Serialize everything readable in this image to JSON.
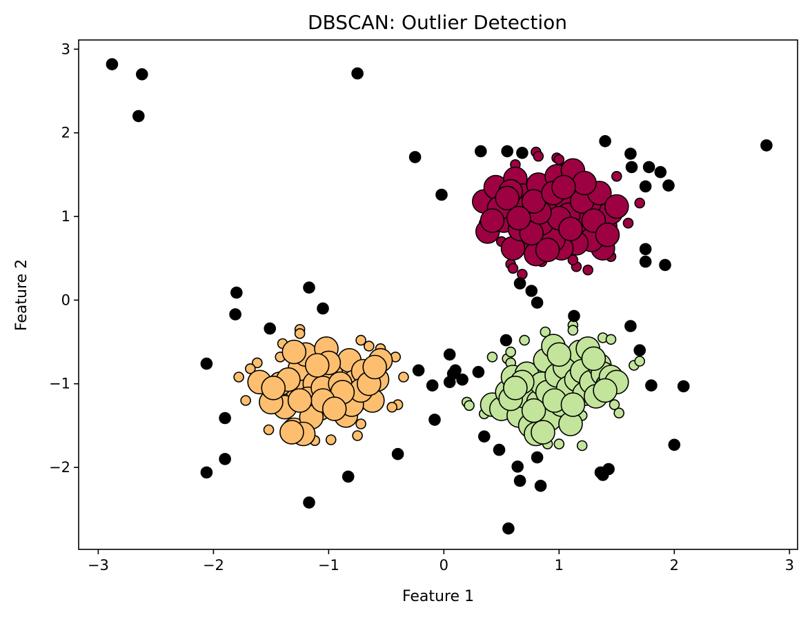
{
  "chart_data": {
    "type": "scatter",
    "title": "DBSCAN: Outlier Detection",
    "xlabel": "Feature 1",
    "ylabel": "Feature 2",
    "xlim": [
      -3.17,
      3.07
    ],
    "ylim": [
      -2.98,
      3.11
    ],
    "xticks": [
      -3,
      -2,
      -1,
      0,
      1,
      2,
      3
    ],
    "yticks": [
      -2,
      -1,
      0,
      1,
      2,
      3
    ],
    "xtick_labels": [
      "−3",
      "−2",
      "−1",
      "0",
      "1",
      "2",
      "3"
    ],
    "ytick_labels": [
      "−2",
      "−1",
      "0",
      "1",
      "2",
      "3"
    ],
    "grid": false,
    "colors": {
      "outlier": "#000000",
      "cluster_a": "#9e0142",
      "cluster_b": "#fdbf6f",
      "cluster_c": "#c2e59b",
      "edge": "#000000"
    },
    "series": [
      {
        "color": "#9e0142",
        "core": [
          [
            0.35,
            1.18
          ],
          [
            0.45,
            1.35
          ],
          [
            0.55,
            1.08
          ],
          [
            0.62,
            1.45
          ],
          [
            0.38,
            0.82
          ],
          [
            0.52,
            0.95
          ],
          [
            0.68,
            1.25
          ],
          [
            0.75,
            1.02
          ],
          [
            0.82,
            1.38
          ],
          [
            0.88,
            1.12
          ],
          [
            0.72,
            0.72
          ],
          [
            0.6,
            0.62
          ],
          [
            0.8,
            0.55
          ],
          [
            0.92,
            0.85
          ],
          [
            0.98,
            1.48
          ],
          [
            1.05,
            1.22
          ],
          [
            1.12,
            1.55
          ],
          [
            1.18,
            0.95
          ],
          [
            1.25,
            1.32
          ],
          [
            1.32,
            1.1
          ],
          [
            1.4,
            0.88
          ],
          [
            1.45,
            1.05
          ],
          [
            1.38,
            0.62
          ],
          [
            1.28,
            0.72
          ],
          [
            1.15,
            0.68
          ],
          [
            1.02,
            0.62
          ],
          [
            0.95,
            0.72
          ],
          [
            0.85,
            0.92
          ],
          [
            0.7,
            1.1
          ],
          [
            0.58,
            1.3
          ],
          [
            0.48,
            1.1
          ],
          [
            0.42,
            0.95
          ],
          [
            1.08,
            1.02
          ],
          [
            1.2,
            1.18
          ],
          [
            1.35,
            1.28
          ],
          [
            1.3,
            0.95
          ],
          [
            0.9,
            0.6
          ],
          [
            0.66,
            0.85
          ],
          [
            0.76,
            0.8
          ],
          [
            1.0,
            0.98
          ],
          [
            1.1,
            0.85
          ],
          [
            0.55,
            1.22
          ],
          [
            0.83,
            1.05
          ],
          [
            1.22,
            1.4
          ],
          [
            0.78,
            1.18
          ],
          [
            0.95,
            1.28
          ],
          [
            1.5,
            1.12
          ],
          [
            1.42,
            0.78
          ],
          [
            0.65,
            0.98
          ],
          [
            1.04,
            1.35
          ]
        ],
        "border": [
          [
            0.62,
            1.62
          ],
          [
            0.8,
            1.77
          ],
          [
            0.98,
            1.7
          ],
          [
            1.05,
            1.58
          ],
          [
            0.35,
            0.92
          ],
          [
            0.58,
            0.43
          ],
          [
            0.6,
            0.38
          ],
          [
            0.68,
            0.31
          ],
          [
            0.85,
            0.46
          ],
          [
            1.15,
            0.4
          ],
          [
            1.25,
            0.36
          ],
          [
            1.45,
            0.52
          ],
          [
            1.6,
            0.92
          ],
          [
            1.7,
            1.16
          ],
          [
            1.5,
            1.48
          ],
          [
            0.82,
            1.72
          ],
          [
            1.0,
            1.68
          ],
          [
            0.5,
            0.7
          ],
          [
            1.12,
            0.48
          ],
          [
            1.4,
            0.58
          ]
        ]
      },
      {
        "color": "#fdbf6f",
        "core": [
          [
            -1.6,
            -0.98
          ],
          [
            -1.45,
            -1.15
          ],
          [
            -1.38,
            -1.28
          ],
          [
            -1.3,
            -1.55
          ],
          [
            -1.28,
            -1.05
          ],
          [
            -1.25,
            -0.82
          ],
          [
            -1.2,
            -0.65
          ],
          [
            -1.12,
            -1.0
          ],
          [
            -1.08,
            -1.3
          ],
          [
            -1.02,
            -0.58
          ],
          [
            -0.98,
            -0.88
          ],
          [
            -0.95,
            -1.12
          ],
          [
            -0.92,
            -1.22
          ],
          [
            -0.85,
            -1.38
          ],
          [
            -0.82,
            -0.72
          ],
          [
            -0.78,
            -0.98
          ],
          [
            -0.75,
            -1.18
          ],
          [
            -0.7,
            -0.85
          ],
          [
            -0.68,
            -1.1
          ],
          [
            -0.62,
            -1.2
          ],
          [
            -0.58,
            -0.95
          ],
          [
            -0.55,
            -0.72
          ],
          [
            -1.5,
            -1.22
          ],
          [
            -1.42,
            -1.0
          ],
          [
            -1.35,
            -0.95
          ],
          [
            -1.18,
            -1.18
          ],
          [
            -1.15,
            -1.4
          ],
          [
            -1.05,
            -1.05
          ],
          [
            -0.9,
            -1.0
          ],
          [
            -0.8,
            -1.25
          ],
          [
            -1.3,
            -0.62
          ],
          [
            -1.22,
            -1.6
          ],
          [
            -0.72,
            -1.08
          ],
          [
            -1.0,
            -0.75
          ],
          [
            -1.1,
            -0.78
          ],
          [
            -0.88,
            -1.1
          ],
          [
            -0.65,
            -1.0
          ],
          [
            -1.48,
            -1.05
          ],
          [
            -1.32,
            -1.58
          ],
          [
            -1.05,
            -1.2
          ],
          [
            -0.6,
            -0.8
          ],
          [
            -1.25,
            -1.2
          ],
          [
            -0.95,
            -1.3
          ]
        ],
        "border": [
          [
            -1.62,
            -0.75
          ],
          [
            -1.68,
            -0.82
          ],
          [
            -1.78,
            -0.92
          ],
          [
            -1.72,
            -1.2
          ],
          [
            -1.55,
            -1.2
          ],
          [
            -1.52,
            -1.55
          ],
          [
            -1.42,
            -0.68
          ],
          [
            -1.4,
            -0.52
          ],
          [
            -1.25,
            -0.35
          ],
          [
            -1.25,
            -0.4
          ],
          [
            -1.35,
            -1.58
          ],
          [
            -1.3,
            -1.62
          ],
          [
            -1.12,
            -1.68
          ],
          [
            -0.98,
            -1.67
          ],
          [
            -0.75,
            -1.62
          ],
          [
            -0.72,
            -1.48
          ],
          [
            -0.65,
            -0.55
          ],
          [
            -0.72,
            -0.48
          ],
          [
            -0.55,
            -0.58
          ],
          [
            -0.42,
            -0.68
          ],
          [
            -0.4,
            -1.25
          ],
          [
            -0.45,
            -1.28
          ],
          [
            -0.35,
            -0.92
          ]
        ]
      },
      {
        "color": "#c2e59b",
        "core": [
          [
            0.42,
            -1.25
          ],
          [
            0.5,
            -1.3
          ],
          [
            0.55,
            -1.1
          ],
          [
            0.6,
            -0.92
          ],
          [
            0.62,
            -1.05
          ],
          [
            0.65,
            -1.38
          ],
          [
            0.7,
            -1.15
          ],
          [
            0.72,
            -0.88
          ],
          [
            0.75,
            -1.5
          ],
          [
            0.8,
            -1.6
          ],
          [
            0.82,
            -1.22
          ],
          [
            0.85,
            -1.0
          ],
          [
            0.88,
            -0.72
          ],
          [
            0.9,
            -1.1
          ],
          [
            0.92,
            -1.42
          ],
          [
            0.95,
            -0.55
          ],
          [
            0.98,
            -0.9
          ],
          [
            1.02,
            -1.25
          ],
          [
            1.05,
            -0.8
          ],
          [
            1.08,
            -1.05
          ],
          [
            1.1,
            -1.48
          ],
          [
            1.15,
            -0.95
          ],
          [
            1.18,
            -0.62
          ],
          [
            1.2,
            -0.85
          ],
          [
            1.22,
            -1.12
          ],
          [
            1.25,
            -0.58
          ],
          [
            1.28,
            -0.98
          ],
          [
            1.32,
            -1.15
          ],
          [
            1.35,
            -0.78
          ],
          [
            1.38,
            -0.88
          ],
          [
            1.42,
            -1.02
          ],
          [
            1.45,
            -0.92
          ],
          [
            1.5,
            -0.98
          ],
          [
            0.58,
            -1.18
          ],
          [
            0.68,
            -0.98
          ],
          [
            0.78,
            -1.32
          ],
          [
            0.96,
            -1.2
          ],
          [
            1.0,
            -0.65
          ],
          [
            1.12,
            -1.25
          ],
          [
            1.3,
            -0.7
          ],
          [
            0.62,
            -1.05
          ],
          [
            0.86,
            -1.58
          ],
          [
            1.4,
            -1.08
          ]
        ],
        "border": [
          [
            0.42,
            -0.68
          ],
          [
            0.55,
            -0.7
          ],
          [
            0.58,
            -0.75
          ],
          [
            0.58,
            -0.62
          ],
          [
            0.7,
            -0.48
          ],
          [
            0.88,
            -0.38
          ],
          [
            1.12,
            -0.3
          ],
          [
            1.12,
            -0.36
          ],
          [
            1.38,
            -0.45
          ],
          [
            1.45,
            -0.47
          ],
          [
            1.65,
            -0.78
          ],
          [
            1.7,
            -0.73
          ],
          [
            1.48,
            -1.25
          ],
          [
            1.52,
            -1.35
          ],
          [
            1.2,
            -1.38
          ],
          [
            0.9,
            -1.72
          ],
          [
            1.0,
            -1.72
          ],
          [
            1.2,
            -1.74
          ],
          [
            0.35,
            -1.36
          ],
          [
            0.2,
            -1.22
          ],
          [
            0.22,
            -1.26
          ]
        ]
      },
      {
        "color": "#000000",
        "outliers": [
          [
            -2.88,
            2.82
          ],
          [
            -2.62,
            2.7
          ],
          [
            -2.65,
            2.2
          ],
          [
            -0.75,
            2.71
          ],
          [
            -0.25,
            1.71
          ],
          [
            -0.02,
            1.26
          ],
          [
            0.32,
            1.78
          ],
          [
            0.55,
            1.78
          ],
          [
            0.68,
            1.76
          ],
          [
            1.4,
            1.9
          ],
          [
            1.62,
            1.75
          ],
          [
            1.63,
            1.59
          ],
          [
            1.78,
            1.59
          ],
          [
            1.88,
            1.53
          ],
          [
            1.75,
            1.36
          ],
          [
            1.95,
            1.37
          ],
          [
            2.8,
            1.85
          ],
          [
            1.75,
            0.61
          ],
          [
            1.75,
            0.46
          ],
          [
            1.92,
            0.42
          ],
          [
            0.66,
            0.2
          ],
          [
            0.76,
            0.11
          ],
          [
            0.81,
            -0.03
          ],
          [
            -1.8,
            0.09
          ],
          [
            -1.17,
            0.15
          ],
          [
            -1.05,
            -0.1
          ],
          [
            -1.81,
            -0.17
          ],
          [
            -1.51,
            -0.34
          ],
          [
            -2.06,
            -0.76
          ],
          [
            -0.22,
            -0.84
          ],
          [
            -0.1,
            -1.02
          ],
          [
            0.05,
            -0.98
          ],
          [
            0.08,
            -0.88
          ],
          [
            0.1,
            -0.84
          ],
          [
            0.16,
            -0.95
          ],
          [
            0.05,
            -0.65
          ],
          [
            0.3,
            -0.86
          ],
          [
            0.54,
            -0.48
          ],
          [
            1.13,
            -0.19
          ],
          [
            1.62,
            -0.31
          ],
          [
            1.7,
            -0.6
          ],
          [
            1.8,
            -1.02
          ],
          [
            2.08,
            -1.03
          ],
          [
            -0.08,
            -1.43
          ],
          [
            -1.9,
            -1.41
          ],
          [
            -0.4,
            -1.84
          ],
          [
            -1.9,
            -1.9
          ],
          [
            -2.06,
            -2.06
          ],
          [
            -0.83,
            -2.11
          ],
          [
            -1.17,
            -2.42
          ],
          [
            0.35,
            -1.63
          ],
          [
            0.48,
            -1.79
          ],
          [
            0.64,
            -1.99
          ],
          [
            0.66,
            -2.16
          ],
          [
            0.81,
            -1.88
          ],
          [
            0.84,
            -2.22
          ],
          [
            1.36,
            -2.06
          ],
          [
            1.38,
            -2.09
          ],
          [
            1.43,
            -2.02
          ],
          [
            2.0,
            -1.73
          ],
          [
            0.56,
            -2.73
          ]
        ]
      }
    ]
  }
}
